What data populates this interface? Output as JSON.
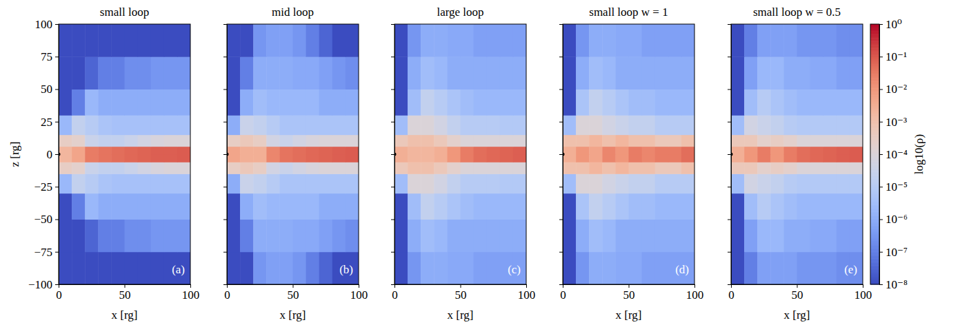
{
  "chart_data": [
    {
      "type": "heatmap",
      "title": "small loop",
      "panel_label": "(a)",
      "x_label": "x [rg]",
      "y_label": "z [rg]",
      "xlim": [
        0,
        100
      ],
      "ylim": [
        -100,
        100
      ],
      "xticks": [
        0,
        50,
        100
      ],
      "yticks": [
        {
          "value": -100,
          "label": "−100"
        },
        {
          "value": -75,
          "label": "−75"
        },
        {
          "value": -50,
          "label": "−50"
        },
        {
          "value": -25,
          "label": "−25"
        },
        0,
        25,
        50,
        75,
        100
      ],
      "tick_labels": true,
      "log": true,
      "x_edges": [
        0,
        10,
        20,
        30,
        40,
        50,
        60,
        70,
        80,
        90,
        100
      ],
      "z_edges": [
        -100,
        -75,
        -50,
        -30,
        -15,
        -6,
        0,
        6,
        15,
        30,
        50,
        75,
        100
      ],
      "values": [
        [
          1e-08,
          1e-08,
          1e-08,
          1e-08,
          1e-08,
          1e-08,
          1e-08,
          1e-08,
          1e-08,
          1e-08
        ],
        [
          1e-08,
          1e-08,
          3e-08,
          1e-07,
          1e-07,
          2e-07,
          2e-07,
          3e-07,
          3e-07,
          3e-07
        ],
        [
          1e-08,
          1e-07,
          2e-06,
          1e-06,
          1e-06,
          1e-06,
          1e-06,
          1e-06,
          1e-06,
          1e-06
        ],
        [
          2e-06,
          2e-05,
          1e-05,
          5e-06,
          4e-06,
          4e-06,
          4e-06,
          4e-06,
          4e-06,
          4e-06
        ],
        [
          0.0003,
          0.0002,
          3e-05,
          2e-05,
          2e-05,
          3e-05,
          5e-05,
          8e-05,
          0.0001,
          0.0001
        ],
        [
          0.002,
          0.005,
          0.03,
          0.04,
          0.05,
          0.06,
          0.07,
          0.08,
          0.08,
          0.09
        ],
        [
          0.002,
          0.005,
          0.03,
          0.04,
          0.05,
          0.06,
          0.07,
          0.08,
          0.08,
          0.09
        ],
        [
          0.0003,
          0.0002,
          3e-05,
          2e-05,
          2e-05,
          3e-05,
          5e-05,
          8e-05,
          0.0001,
          0.0001
        ],
        [
          2e-06,
          2e-05,
          1e-05,
          5e-06,
          4e-06,
          4e-06,
          4e-06,
          4e-06,
          4e-06,
          4e-06
        ],
        [
          1e-08,
          1e-07,
          2e-06,
          1e-06,
          1e-06,
          1e-06,
          1e-06,
          1e-06,
          1e-06,
          1e-06
        ],
        [
          1e-08,
          1e-08,
          3e-08,
          1e-07,
          1e-07,
          2e-07,
          2e-07,
          3e-07,
          3e-07,
          3e-07
        ],
        [
          1e-08,
          1e-08,
          1e-08,
          1e-08,
          1e-08,
          1e-08,
          1e-08,
          1e-08,
          1e-08,
          1e-08
        ]
      ]
    },
    {
      "type": "heatmap",
      "title": "mid loop",
      "panel_label": "(b)",
      "x_label": "x [rg]",
      "xlim": [
        0,
        100
      ],
      "ylim": [
        -100,
        100
      ],
      "xticks": [
        0,
        50,
        100
      ],
      "yticks": [
        -100,
        -75,
        -50,
        -25,
        0,
        25,
        50,
        75,
        100
      ],
      "tick_labels": "x",
      "log": true,
      "x_edges": [
        0,
        10,
        20,
        30,
        40,
        50,
        60,
        70,
        80,
        90,
        100
      ],
      "z_edges": [
        -100,
        -75,
        -50,
        -30,
        -15,
        -6,
        0,
        6,
        15,
        30,
        50,
        75,
        100
      ],
      "values": [
        [
          1e-08,
          1e-08,
          3e-07,
          5e-07,
          5e-07,
          3e-07,
          1e-07,
          3e-08,
          1e-08,
          1e-08
        ],
        [
          1e-08,
          1e-07,
          1e-06,
          1e-06,
          1e-06,
          8e-07,
          8e-07,
          5e-07,
          3e-07,
          2e-07
        ],
        [
          1e-08,
          1e-06,
          3e-06,
          2e-06,
          2e-06,
          2e-06,
          2e-06,
          1e-06,
          1e-06,
          1e-06
        ],
        [
          1e-06,
          3e-05,
          2e-05,
          1e-05,
          5e-06,
          5e-06,
          5e-06,
          5e-06,
          5e-06,
          5e-06
        ],
        [
          0.0003,
          0.0005,
          0.0003,
          5e-05,
          3e-05,
          5e-05,
          8e-05,
          0.0001,
          0.0001,
          0.0001
        ],
        [
          0.005,
          0.003,
          0.003,
          0.02,
          0.04,
          0.05,
          0.06,
          0.07,
          0.08,
          0.09
        ],
        [
          0.005,
          0.003,
          0.003,
          0.02,
          0.04,
          0.05,
          0.06,
          0.07,
          0.08,
          0.09
        ],
        [
          0.0003,
          0.0005,
          0.0003,
          5e-05,
          3e-05,
          5e-05,
          8e-05,
          0.0001,
          0.0001,
          0.0001
        ],
        [
          1e-06,
          3e-05,
          2e-05,
          1e-05,
          5e-06,
          5e-06,
          5e-06,
          5e-06,
          5e-06,
          5e-06
        ],
        [
          1e-08,
          1e-06,
          3e-06,
          2e-06,
          2e-06,
          2e-06,
          2e-06,
          1e-06,
          1e-06,
          1e-06
        ],
        [
          1e-08,
          1e-07,
          1e-06,
          1e-06,
          1e-06,
          8e-07,
          8e-07,
          5e-07,
          3e-07,
          2e-07
        ],
        [
          1e-08,
          1e-08,
          3e-07,
          5e-07,
          5e-07,
          3e-07,
          1e-07,
          3e-08,
          1e-08,
          1e-08
        ]
      ]
    },
    {
      "type": "heatmap",
      "title": "large loop",
      "panel_label": "(c)",
      "x_label": "x [rg]",
      "xlim": [
        0,
        100
      ],
      "ylim": [
        -100,
        100
      ],
      "xticks": [
        0,
        50,
        100
      ],
      "yticks": [
        -100,
        -75,
        -50,
        -25,
        0,
        25,
        50,
        75,
        100
      ],
      "tick_labels": "x",
      "log": true,
      "x_edges": [
        0,
        10,
        20,
        30,
        40,
        50,
        60,
        70,
        80,
        90,
        100
      ],
      "z_edges": [
        -100,
        -75,
        -50,
        -30,
        -15,
        -6,
        0,
        6,
        15,
        30,
        50,
        75,
        100
      ],
      "values": [
        [
          1e-08,
          3e-07,
          1e-06,
          1e-06,
          8e-07,
          8e-07,
          5e-07,
          5e-07,
          5e-07,
          5e-07
        ],
        [
          1e-08,
          1e-06,
          3e-06,
          2e-06,
          1e-06,
          1e-06,
          1e-06,
          1e-06,
          1e-06,
          1e-06
        ],
        [
          1e-08,
          3e-06,
          2e-05,
          1e-05,
          5e-06,
          3e-06,
          2e-06,
          2e-06,
          2e-06,
          2e-06
        ],
        [
          3e-06,
          0.0001,
          0.0001,
          5e-05,
          2e-05,
          1e-05,
          1e-05,
          1e-05,
          8e-06,
          8e-06
        ],
        [
          0.0005,
          0.001,
          0.001,
          0.0005,
          0.0002,
          0.0001,
          0.0001,
          0.0001,
          0.0001,
          0.0001
        ],
        [
          0.003,
          0.002,
          0.002,
          0.003,
          0.01,
          0.03,
          0.05,
          0.06,
          0.07,
          0.08
        ],
        [
          0.003,
          0.002,
          0.002,
          0.003,
          0.01,
          0.03,
          0.05,
          0.06,
          0.07,
          0.08
        ],
        [
          0.0005,
          0.001,
          0.001,
          0.0005,
          0.0002,
          0.0001,
          0.0001,
          0.0001,
          0.0001,
          0.0001
        ],
        [
          3e-06,
          0.0001,
          0.0001,
          5e-05,
          2e-05,
          1e-05,
          1e-05,
          1e-05,
          8e-06,
          8e-06
        ],
        [
          1e-08,
          3e-06,
          2e-05,
          1e-05,
          5e-06,
          3e-06,
          2e-06,
          2e-06,
          2e-06,
          2e-06
        ],
        [
          1e-08,
          1e-06,
          3e-06,
          2e-06,
          1e-06,
          1e-06,
          1e-06,
          1e-06,
          1e-06,
          1e-06
        ],
        [
          1e-08,
          3e-07,
          1e-06,
          1e-06,
          8e-07,
          8e-07,
          5e-07,
          5e-07,
          5e-07,
          5e-07
        ]
      ]
    },
    {
      "type": "heatmap",
      "title": "small loop w = 1",
      "panel_label": "(d)",
      "x_label": "x [rg]",
      "xlim": [
        0,
        100
      ],
      "ylim": [
        -100,
        100
      ],
      "xticks": [
        0,
        50,
        100
      ],
      "yticks": [
        -100,
        -75,
        -50,
        -25,
        0,
        25,
        50,
        75,
        100
      ],
      "tick_labels": "x",
      "log": true,
      "x_edges": [
        0,
        10,
        20,
        30,
        40,
        50,
        60,
        70,
        80,
        90,
        100
      ],
      "z_edges": [
        -100,
        -75,
        -50,
        -30,
        -15,
        -6,
        0,
        6,
        15,
        30,
        50,
        75,
        100
      ],
      "values": [
        [
          1e-08,
          3e-07,
          1e-06,
          1e-06,
          8e-07,
          8e-07,
          5e-07,
          5e-07,
          5e-07,
          5e-07
        ],
        [
          1e-08,
          1e-06,
          3e-06,
          2e-06,
          1e-06,
          1e-06,
          1e-06,
          1e-06,
          1e-06,
          1e-06
        ],
        [
          1e-08,
          5e-06,
          2e-05,
          1e-05,
          5e-06,
          3e-06,
          3e-06,
          2e-06,
          2e-06,
          2e-06
        ],
        [
          3e-06,
          0.0001,
          0.0001,
          5e-05,
          3e-05,
          2e-05,
          2e-05,
          1e-05,
          1e-05,
          1e-05
        ],
        [
          0.001,
          0.001,
          0.002,
          0.001,
          0.002,
          0.001,
          0.001,
          0.0005,
          0.0005,
          0.001
        ],
        [
          0.003,
          0.01,
          0.005,
          0.02,
          0.01,
          0.03,
          0.02,
          0.03,
          0.03,
          0.05
        ],
        [
          0.003,
          0.01,
          0.005,
          0.02,
          0.01,
          0.03,
          0.02,
          0.03,
          0.03,
          0.05
        ],
        [
          0.001,
          0.001,
          0.002,
          0.001,
          0.002,
          0.001,
          0.001,
          0.0005,
          0.0005,
          0.001
        ],
        [
          3e-06,
          0.0001,
          0.0001,
          5e-05,
          3e-05,
          2e-05,
          2e-05,
          1e-05,
          1e-05,
          1e-05
        ],
        [
          1e-08,
          5e-06,
          2e-05,
          1e-05,
          5e-06,
          3e-06,
          3e-06,
          2e-06,
          2e-06,
          2e-06
        ],
        [
          1e-08,
          1e-06,
          3e-06,
          2e-06,
          1e-06,
          1e-06,
          1e-06,
          1e-06,
          1e-06,
          1e-06
        ],
        [
          1e-08,
          3e-07,
          1e-06,
          1e-06,
          8e-07,
          8e-07,
          5e-07,
          5e-07,
          5e-07,
          5e-07
        ]
      ]
    },
    {
      "type": "heatmap",
      "title": "small loop w = 0.5",
      "panel_label": "(e)",
      "x_label": "x [rg]",
      "xlim": [
        0,
        100
      ],
      "ylim": [
        -100,
        100
      ],
      "xticks": [
        0,
        50,
        100
      ],
      "yticks": [
        -100,
        -75,
        -50,
        -25,
        0,
        25,
        50,
        75,
        100
      ],
      "tick_labels": "x",
      "log": true,
      "x_edges": [
        0,
        10,
        20,
        30,
        40,
        50,
        60,
        70,
        80,
        90,
        100
      ],
      "z_edges": [
        -100,
        -75,
        -50,
        -30,
        -15,
        -6,
        0,
        6,
        15,
        30,
        50,
        75,
        100
      ],
      "values": [
        [
          1e-08,
          1e-07,
          5e-07,
          5e-07,
          5e-07,
          3e-07,
          3e-07,
          3e-07,
          2e-07,
          2e-07
        ],
        [
          1e-08,
          5e-07,
          2e-06,
          2e-06,
          1e-06,
          1e-06,
          8e-07,
          8e-07,
          5e-07,
          5e-07
        ],
        [
          1e-08,
          3e-06,
          1e-05,
          5e-06,
          3e-06,
          2e-06,
          2e-06,
          2e-06,
          2e-06,
          2e-06
        ],
        [
          3e-06,
          5e-05,
          3e-05,
          2e-05,
          1e-05,
          8e-06,
          8e-06,
          8e-06,
          8e-06,
          8e-06
        ],
        [
          0.0005,
          0.0005,
          0.0002,
          0.0003,
          0.0002,
          0.0001,
          0.0001,
          0.0001,
          0.0001,
          0.0001
        ],
        [
          0.003,
          0.01,
          0.03,
          0.01,
          0.03,
          0.05,
          0.06,
          0.07,
          0.08,
          0.09
        ],
        [
          0.003,
          0.01,
          0.03,
          0.01,
          0.03,
          0.05,
          0.06,
          0.07,
          0.08,
          0.09
        ],
        [
          0.0005,
          0.0005,
          0.0002,
          0.0003,
          0.0002,
          0.0001,
          0.0001,
          0.0001,
          0.0001,
          0.0001
        ],
        [
          3e-06,
          5e-05,
          3e-05,
          2e-05,
          1e-05,
          8e-06,
          8e-06,
          8e-06,
          8e-06,
          8e-06
        ],
        [
          1e-08,
          3e-06,
          1e-05,
          5e-06,
          3e-06,
          2e-06,
          2e-06,
          2e-06,
          2e-06,
          2e-06
        ],
        [
          1e-08,
          5e-07,
          2e-06,
          2e-06,
          1e-06,
          1e-06,
          8e-07,
          8e-07,
          5e-07,
          5e-07
        ],
        [
          1e-08,
          1e-07,
          5e-07,
          5e-07,
          5e-07,
          3e-07,
          3e-07,
          3e-07,
          2e-07,
          2e-07
        ]
      ],
      "colorbar": {
        "label": "log10(ρ)",
        "range": [
          1e-08,
          1
        ],
        "log": true,
        "ticks": [
          {
            "value": 1e-08,
            "label": "10⁻⁸"
          },
          {
            "value": 1e-07,
            "label": "10⁻⁷"
          },
          {
            "value": 1e-06,
            "label": "10⁻⁶"
          },
          {
            "value": 1e-05,
            "label": "10⁻⁵"
          },
          {
            "value": 0.0001,
            "label": "10⁻⁴"
          },
          {
            "value": 0.001,
            "label": "10⁻³"
          },
          {
            "value": 0.01,
            "label": "10⁻²"
          },
          {
            "value": 0.1,
            "label": "10⁻¹"
          },
          {
            "value": 1,
            "label": "10⁰"
          }
        ]
      }
    }
  ]
}
